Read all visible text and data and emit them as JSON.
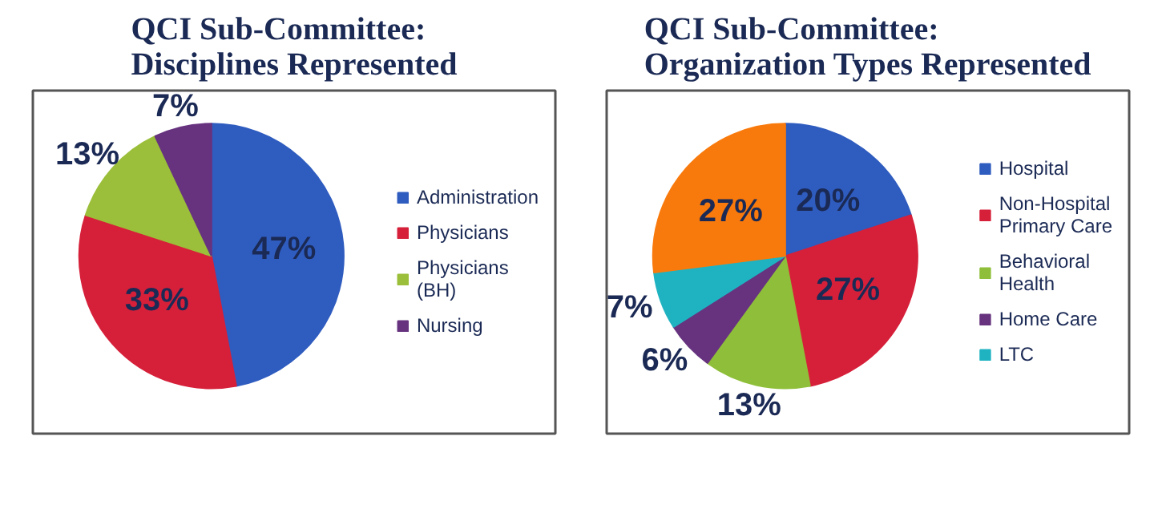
{
  "chart_data": [
    {
      "type": "pie",
      "title": "QCI Sub-Committee:\nDisciplines Represented",
      "categories": [
        "Administration",
        "Physicians",
        "Physicians (BH)",
        "Nursing"
      ],
      "values": [
        47,
        33,
        13,
        7
      ],
      "value_labels": [
        "47%",
        "33%",
        "13%",
        "7%"
      ],
      "colors": [
        "#2f5cbf",
        "#d6203a",
        "#9bbf3a",
        "#67337f"
      ],
      "legend": "right"
    },
    {
      "type": "pie",
      "title": "QCI Sub-Committee:\nOrganization Types Represented",
      "categories": [
        "Hospital",
        "Non-Hospital Primary Care",
        "Behavioral Health",
        "Home Care",
        "LTC",
        null
      ],
      "values": [
        20,
        27,
        13,
        6,
        7,
        27
      ],
      "value_labels": [
        "20%",
        "27%",
        "13%",
        "6%",
        "7%",
        "27%"
      ],
      "colors": [
        "#2f5cbf",
        "#d6203a",
        "#8fbf3a",
        "#67337f",
        "#1fb3c2",
        "#f97a0c"
      ],
      "legend": "right"
    }
  ]
}
